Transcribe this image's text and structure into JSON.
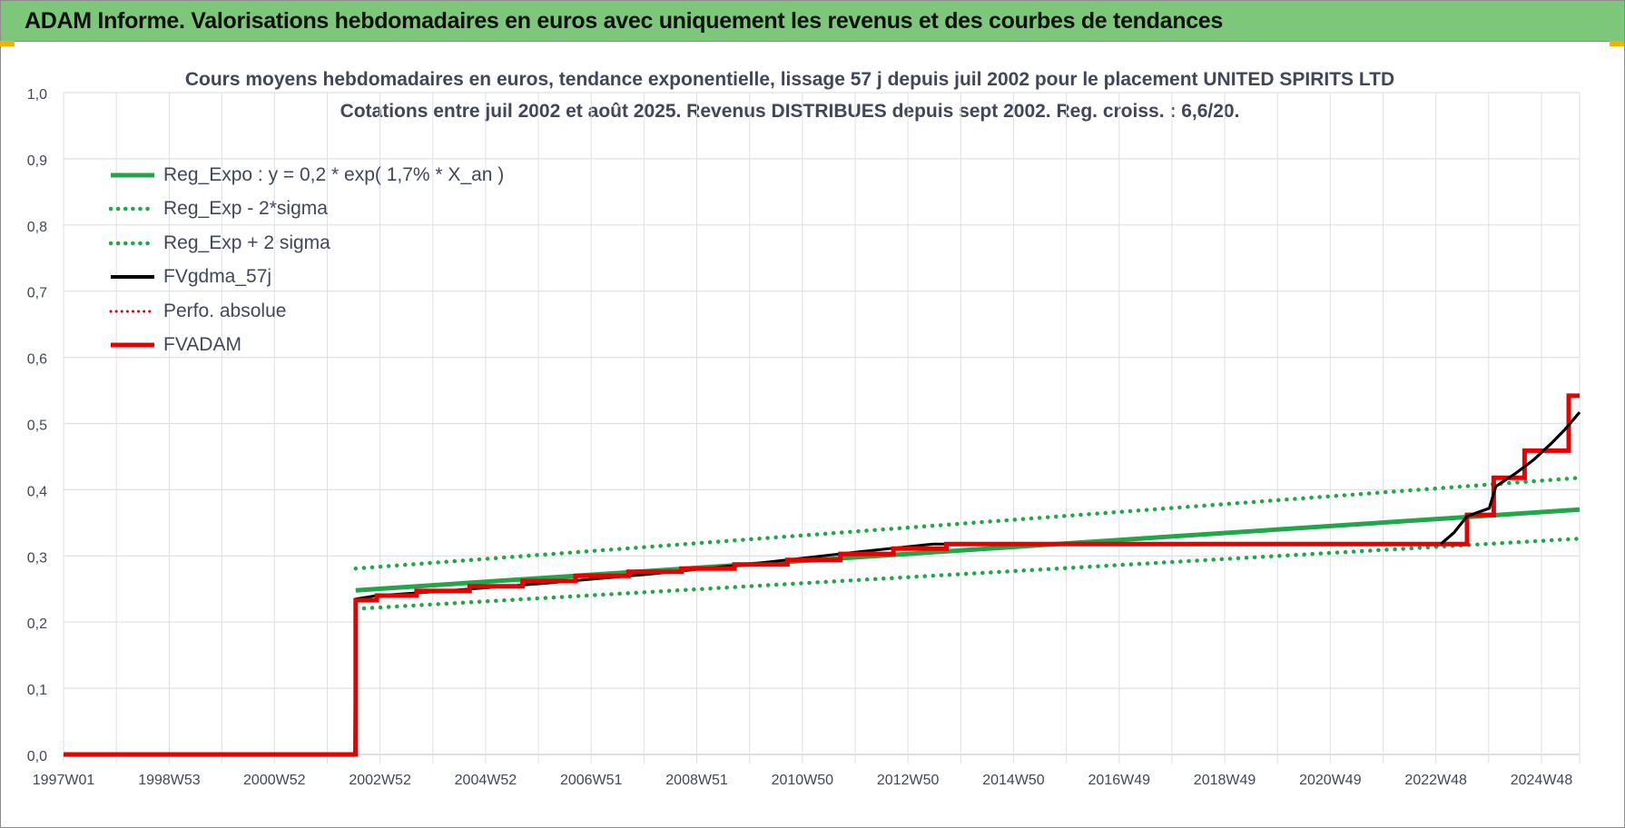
{
  "banner": {
    "title": "ADAM Informe. Valorisations hebdomadaires en euros avec uniquement les revenus et des courbes de tendances"
  },
  "chart_data": {
    "type": "line",
    "title": "Cours moyens hebdomadaires en euros, tendance exponentielle, lissage 57 j depuis juil 2002 pour le placement UNITED SPIRITS LTD",
    "subtitle": "Cotations entre juil 2002 et août 2025. Revenus DISTRIBUES depuis sept 2002. Reg. croiss. : 6,6/20.",
    "x_axis": {
      "type": "date",
      "range": [
        "1997-01-01",
        "2025-08-15"
      ],
      "tick_labels": [
        "1997W01",
        "1998W53",
        "2000W52",
        "2002W52",
        "2004W52",
        "2006W51",
        "2008W51",
        "2010W50",
        "2012W50",
        "2014W50",
        "2016W49",
        "2018W49",
        "2020W49",
        "2022W48",
        "2024W48"
      ],
      "tick_dates": [
        "1997-01-01",
        "1998-12-31",
        "2000-12-25",
        "2002-12-23",
        "2004-12-20",
        "2006-12-18",
        "2008-12-15",
        "2010-12-13",
        "2012-12-10",
        "2014-12-08",
        "2016-12-05",
        "2018-12-03",
        "2020-11-30",
        "2022-11-28",
        "2024-11-25"
      ]
    },
    "y_axis": {
      "ylim": [
        0,
        1.0
      ],
      "ticks": [
        0.0,
        0.1,
        0.2,
        0.3,
        0.4,
        0.5,
        0.6,
        0.7,
        0.8,
        0.9,
        1.0
      ],
      "tick_labels": [
        "0,0",
        "0,1",
        "0,2",
        "0,3",
        "0,4",
        "0,5",
        "0,6",
        "0,7",
        "0,8",
        "0,9",
        "1,0"
      ]
    },
    "grid": true,
    "legend_position": "top-left",
    "series": [
      {
        "name": "Reg_Expo : y = 0,2 * exp( 1,7% *  X_an )",
        "color": "#21a64a",
        "style": "solid",
        "points": [
          [
            "2002-07-08",
            0.248
          ],
          [
            "2025-08-15",
            0.37
          ]
        ]
      },
      {
        "name": "Reg_Exp - 2*sigma",
        "color": "#21a64a",
        "style": "dotted",
        "points": [
          [
            "2002-07-08",
            0.22
          ],
          [
            "2025-08-15",
            0.326
          ]
        ]
      },
      {
        "name": "Reg_Exp + 2 sigma",
        "color": "#21a64a",
        "style": "dotted",
        "points": [
          [
            "2002-07-08",
            0.281
          ],
          [
            "2025-08-15",
            0.418
          ]
        ]
      },
      {
        "name": "FVgdma_57j",
        "color": "#000000",
        "style": "solid",
        "points": [
          [
            "1997-01-01",
            0.0
          ],
          [
            "2002-07-01",
            0.0
          ],
          [
            "2002-07-08",
            0.235
          ],
          [
            "2002-12-01",
            0.24
          ],
          [
            "2004-01-01",
            0.246
          ],
          [
            "2006-01-01",
            0.258
          ],
          [
            "2008-01-01",
            0.272
          ],
          [
            "2010-01-01",
            0.288
          ],
          [
            "2012-01-01",
            0.306
          ],
          [
            "2013-06-01",
            0.318
          ],
          [
            "2020-01-01",
            0.318
          ],
          [
            "2023-01-01",
            0.318
          ],
          [
            "2023-04-01",
            0.335
          ],
          [
            "2023-07-01",
            0.36
          ],
          [
            "2023-12-01",
            0.372
          ],
          [
            "2024-01-15",
            0.405
          ],
          [
            "2024-06-01",
            0.425
          ],
          [
            "2024-10-01",
            0.445
          ],
          [
            "2025-02-01",
            0.47
          ],
          [
            "2025-05-01",
            0.49
          ],
          [
            "2025-08-15",
            0.517
          ]
        ]
      },
      {
        "name": "Perfo. absolue",
        "color": "#e60000",
        "style": "dotted",
        "points": []
      },
      {
        "name": "FVADAM",
        "color": "#e60000",
        "style": "solid",
        "points": [
          [
            "1997-01-01",
            0.0
          ],
          [
            "2002-07-08",
            0.0
          ],
          [
            "2002-07-08",
            0.233
          ],
          [
            "2002-12-01",
            0.233
          ],
          [
            "2002-12-01",
            0.24
          ],
          [
            "2003-09-01",
            0.24
          ],
          [
            "2003-09-01",
            0.247
          ],
          [
            "2004-09-01",
            0.247
          ],
          [
            "2004-09-01",
            0.254
          ],
          [
            "2005-09-01",
            0.254
          ],
          [
            "2005-09-01",
            0.262
          ],
          [
            "2006-09-01",
            0.262
          ],
          [
            "2006-09-01",
            0.27
          ],
          [
            "2007-09-01",
            0.27
          ],
          [
            "2007-09-01",
            0.276
          ],
          [
            "2008-09-01",
            0.276
          ],
          [
            "2008-09-01",
            0.281
          ],
          [
            "2009-09-01",
            0.281
          ],
          [
            "2009-09-01",
            0.287
          ],
          [
            "2010-09-01",
            0.287
          ],
          [
            "2010-09-01",
            0.294
          ],
          [
            "2011-09-01",
            0.294
          ],
          [
            "2011-09-01",
            0.303
          ],
          [
            "2012-09-01",
            0.303
          ],
          [
            "2012-09-01",
            0.311
          ],
          [
            "2013-09-01",
            0.311
          ],
          [
            "2013-09-01",
            0.318
          ],
          [
            "2023-07-01",
            0.318
          ],
          [
            "2023-07-01",
            0.362
          ],
          [
            "2024-01-01",
            0.362
          ],
          [
            "2024-01-01",
            0.418
          ],
          [
            "2024-08-01",
            0.418
          ],
          [
            "2024-08-01",
            0.459
          ],
          [
            "2025-06-01",
            0.459
          ],
          [
            "2025-06-01",
            0.542
          ],
          [
            "2025-08-15",
            0.542
          ]
        ]
      }
    ],
    "legend_entries": [
      "Reg_Expo : y = 0,2 * exp( 1,7% *  X_an )",
      "Reg_Exp - 2*sigma",
      "Reg_Exp + 2 sigma",
      "FVgdma_57j",
      "Perfo. absolue",
      "FVADAM"
    ]
  }
}
